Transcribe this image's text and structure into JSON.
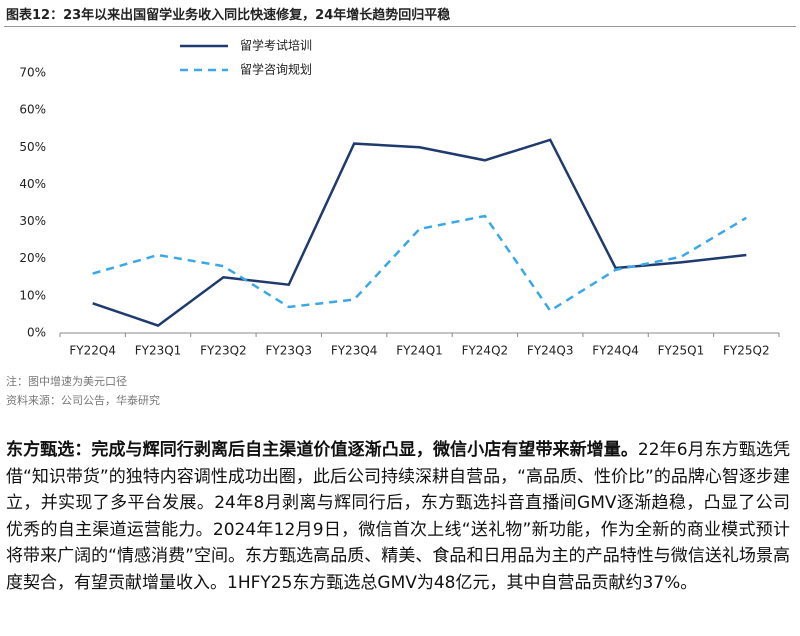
{
  "header": {
    "title": "图表12：23年以来出国留学业务收入同比快速修复，24年增长趋势回归平稳"
  },
  "chart_data": {
    "type": "line",
    "categories": [
      "FY22Q4",
      "FY23Q1",
      "FY23Q2",
      "FY23Q3",
      "FY23Q4",
      "FY24Q1",
      "FY24Q2",
      "FY24Q3",
      "FY24Q4",
      "FY25Q1",
      "FY25Q2"
    ],
    "series": [
      {
        "name": "留学考试培训",
        "color": "#1f3a6e",
        "dash": "solid",
        "values": [
          8,
          2,
          15,
          13,
          51,
          50,
          46.5,
          52,
          17.5,
          19,
          21
        ]
      },
      {
        "name": "留学咨询规划",
        "color": "#3aa8e8",
        "dash": "dashed",
        "values": [
          16,
          21,
          18,
          7,
          9,
          28,
          31.5,
          6,
          17,
          20.5,
          31
        ]
      }
    ],
    "ylim": [
      0,
      70
    ],
    "yticks": [
      {
        "value": 0,
        "label": "0%"
      },
      {
        "value": 10,
        "label": "10%"
      },
      {
        "value": 20,
        "label": "20%"
      },
      {
        "value": 30,
        "label": "30%"
      },
      {
        "value": 40,
        "label": "40%"
      },
      {
        "value": 50,
        "label": "50%"
      },
      {
        "value": 60,
        "label": "60%"
      },
      {
        "value": 70,
        "label": "70%"
      }
    ],
    "grid": false,
    "legend": "top-left"
  },
  "notes": [
    "注：图中增速为美元口径",
    "资料来源：公司公告，华泰研究"
  ],
  "body": {
    "lead": "东方甄选：完成与辉同行剥离后自主渠道价值逐渐凸显，微信小店有望带来新增量。",
    "text": "22年6月东方甄选凭借“知识带货”的独特内容调性成功出圈，此后公司持续深耕自营品，“高品质、性价比”的品牌心智逐步建立，并实现了多平台发展。24年8月剥离与辉同行后，东方甄选抖音直播间GMV逐渐趋稳，凸显了公司优秀的自主渠道运营能力。2024年12月9日，微信首次上线“送礼物”新功能，作为全新的商业模式预计将带来广阔的“情感消费”空间。东方甄选高品质、精美、食品和日用品为主的产品特性与微信送礼场景高度契合，有望贡献增量收入。1HFY25东方甄选总GMV为48亿元，其中自营品贡献约37%。"
  }
}
